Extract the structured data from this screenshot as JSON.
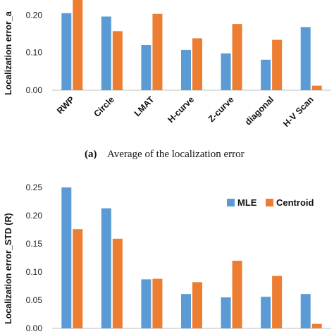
{
  "chart_data": [
    {
      "type": "bar",
      "ylabel": "Localization error_a",
      "categories": [
        "RWP",
        "Circle",
        "LMAT",
        "H-curve",
        "Z-curve",
        "diagonal",
        "H-V Scan"
      ],
      "yticks": [
        "0.00",
        "0.10",
        "0.20"
      ],
      "ylim": [
        0,
        0.24
      ],
      "series": [
        {
          "values": [
            0.205,
            0.196,
            0.12,
            0.107,
            0.098,
            0.081,
            0.168
          ],
          "color": "#5b9bd5"
        },
        {
          "values": [
            0.24,
            0.157,
            0.203,
            0.138,
            0.176,
            0.134,
            0.012
          ],
          "color": "#ed7d31"
        }
      ],
      "caption_label": "(a)",
      "caption_text": "Average of the localization error"
    },
    {
      "type": "bar",
      "ylabel": "Localization error_STD (R)",
      "yticks": [
        "0.00",
        "0.05",
        "0.10",
        "0.15",
        "0.20",
        "0.25"
      ],
      "ylim": [
        0,
        0.25
      ],
      "legend": "top-right",
      "series": [
        {
          "name": "MLE",
          "values": [
            0.25,
            0.213,
            0.087,
            0.061,
            0.055,
            0.056,
            0.061
          ],
          "color": "#5b9bd5"
        },
        {
          "name": "Centroid",
          "values": [
            0.176,
            0.159,
            0.088,
            0.082,
            0.12,
            0.093,
            0.008
          ],
          "color": "#ed7d31"
        }
      ]
    }
  ]
}
